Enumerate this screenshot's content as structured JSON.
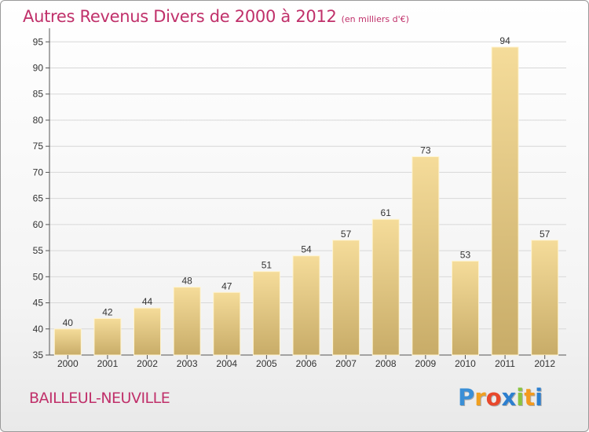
{
  "header": {
    "title": "Autres Revenus Divers de 2000 à 2012",
    "subtitle": "(en milliers d'€)"
  },
  "footer": {
    "commune": "BAILLEUL-NEUVILLE",
    "logo_letters": [
      "P",
      "r",
      "o",
      "x",
      "i",
      "t",
      "i"
    ],
    "logo_colors": [
      "#3a8fd6",
      "#f0a020",
      "#e8482c",
      "#2c7fcf",
      "#8ac43f",
      "#f39a1e",
      "#2c7fcf"
    ]
  },
  "colors": {
    "title": "#c0306a",
    "bar_light": "#f5dc9a",
    "bar_dark": "#c8ac68"
  },
  "chart_data": {
    "type": "bar",
    "categories": [
      "2000",
      "2001",
      "2002",
      "2003",
      "2004",
      "2005",
      "2006",
      "2007",
      "2008",
      "2009",
      "2010",
      "2011",
      "2012"
    ],
    "values": [
      40,
      42,
      44,
      48,
      47,
      51,
      54,
      57,
      61,
      73,
      53,
      94,
      57
    ],
    "ylim": [
      35,
      97
    ],
    "yticks": [
      "35",
      "40",
      "45",
      "50",
      "55",
      "60",
      "65",
      "70",
      "75",
      "80",
      "85",
      "90",
      "95"
    ],
    "grid": true
  }
}
